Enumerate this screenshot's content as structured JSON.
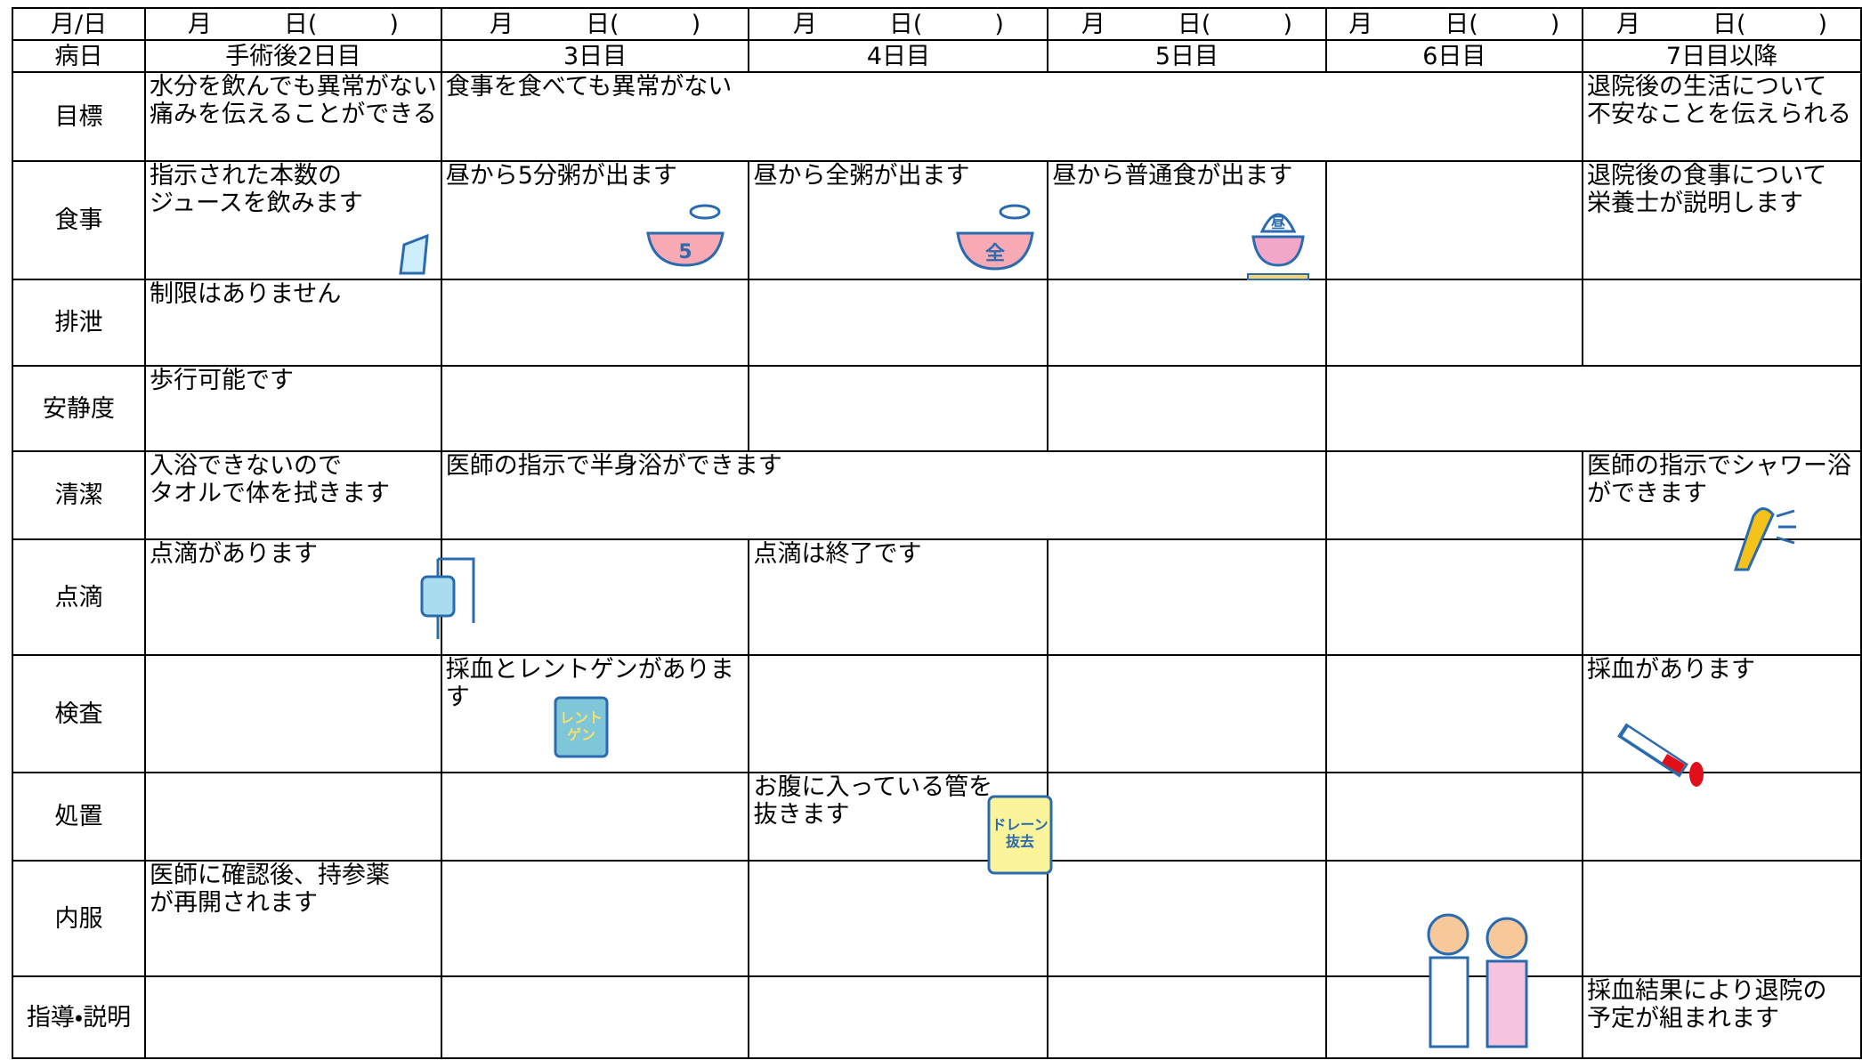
{
  "header": {
    "date_label": "月/日",
    "dates": [
      "月　　　日(　　　)",
      "月　　　日(　　　)",
      "月　　　日(　　　)",
      "月　　　日(　　　)",
      "月　　　日(　　　)",
      "月　　　日(　　　)"
    ],
    "day_label": "病日",
    "days": [
      "手術後2日目",
      "3日目",
      "4日目",
      "5日目",
      "6日目",
      "7日目以降"
    ]
  },
  "table": {
    "rows": [
      {
        "label": "目標",
        "cells": [
          "水分を飲んでも異常がない\n痛みを伝えることができる",
          "食事を食べても異常がない",
          "退院後の生活について\n不安なことを伝えられる"
        ]
      },
      {
        "label": "食事",
        "cells": [
          "指示された本数の\nジュースを飲みます",
          "昼から5分粥が出ます",
          "昼から全粥が出ます",
          "昼から普通食が出ます",
          "退院後の食事について\n栄養士が説明します"
        ]
      },
      {
        "label": "排泄",
        "cells": [
          "制限はありません"
        ]
      },
      {
        "label": "安静度",
        "cells": [
          "歩行可能です"
        ]
      },
      {
        "label": "清潔",
        "cells": [
          "入浴できないので\nタオルで体を拭きます",
          "医師の指示で半身浴ができます",
          "医師の指示でシャワー浴\nができます"
        ]
      },
      {
        "label": "点滴",
        "cells": [
          "点滴があります",
          "点滴は終了です"
        ]
      },
      {
        "label": "検査",
        "cells": [
          "採血とレントゲンがあります",
          "採血があります"
        ]
      },
      {
        "label": "処置",
        "cells": [
          "お腹に入っている管を\n抜きます"
        ]
      },
      {
        "label": "内服",
        "cells": [
          "医師に確認後、持参薬\nが再開されます"
        ]
      },
      {
        "label": "指導・説明",
        "cells": [
          "採血結果により退院の\n予定が組まれます"
        ]
      }
    ]
  },
  "icons": {
    "bowl_5": "5",
    "bowl_full": "全",
    "bowl_lunch": "昼",
    "xray": "レント\nゲン",
    "drain": "ドレーン\n抜去"
  }
}
